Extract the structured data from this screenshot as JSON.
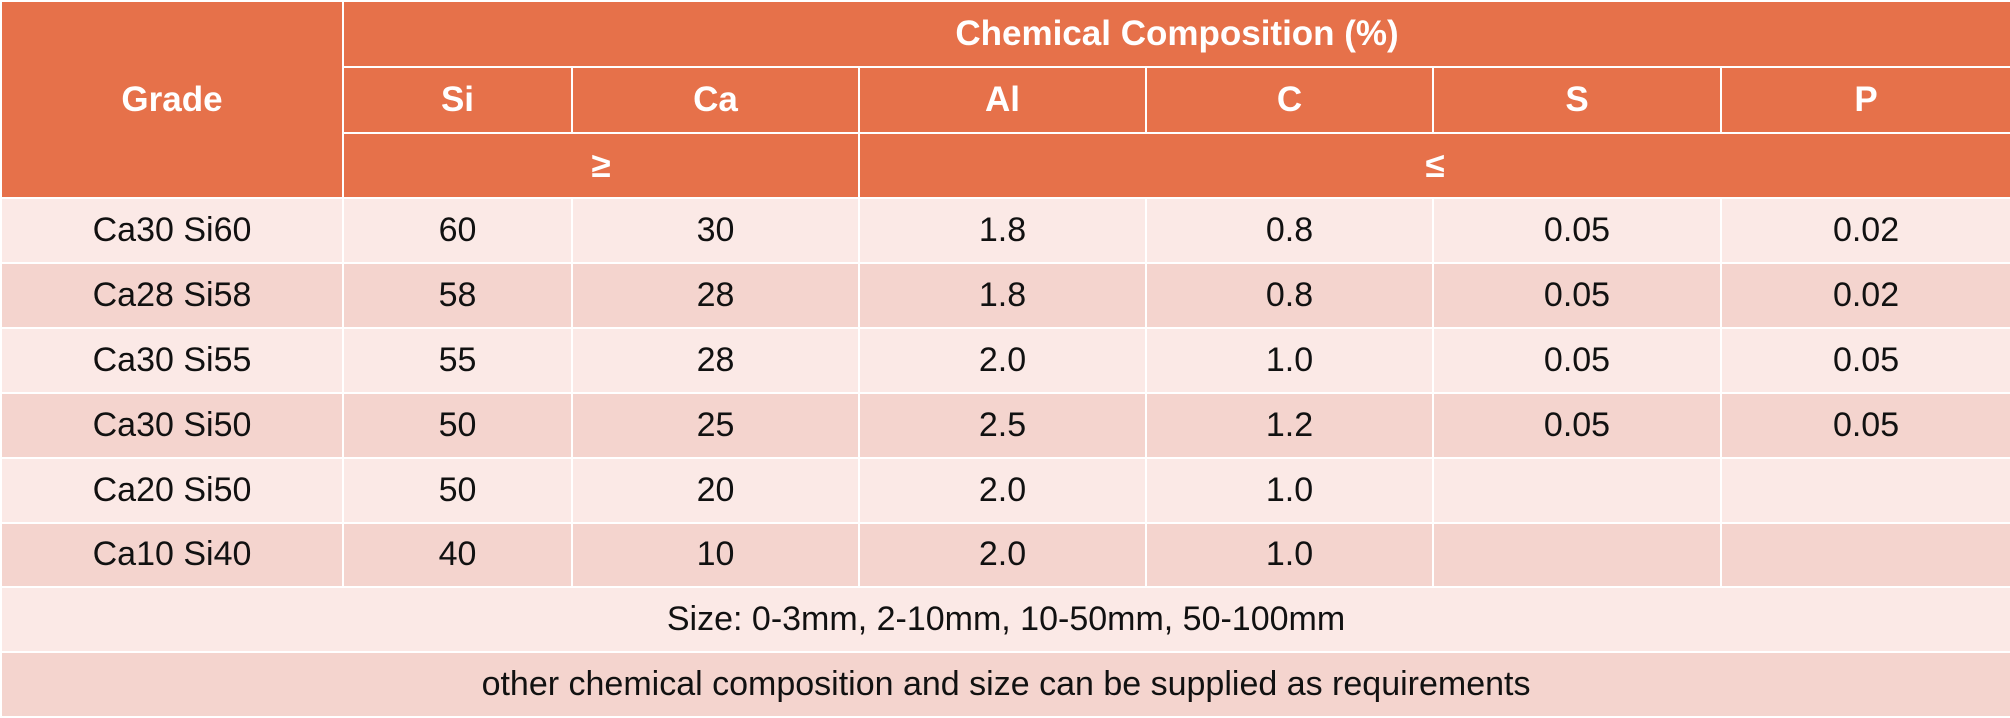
{
  "table": {
    "grade_header": "Grade",
    "composition_header": "Chemical Composition (%)",
    "columns": [
      "Si",
      "Ca",
      "Al",
      "C",
      "S",
      "P"
    ],
    "min_label": "≥",
    "max_label": "≤",
    "rows": [
      {
        "grade": "Ca30 Si60",
        "values": [
          "60",
          "30",
          "1.8",
          "0.8",
          "0.05",
          "0.02"
        ]
      },
      {
        "grade": "Ca28 Si58",
        "values": [
          "58",
          "28",
          "1.8",
          "0.8",
          "0.05",
          "0.02"
        ]
      },
      {
        "grade": "Ca30 Si55",
        "values": [
          "55",
          "28",
          "2.0",
          "1.0",
          "0.05",
          "0.05"
        ]
      },
      {
        "grade": "Ca30 Si50",
        "values": [
          "50",
          "25",
          "2.5",
          "1.2",
          "0.05",
          "0.05"
        ]
      },
      {
        "grade": "Ca20 Si50",
        "values": [
          "50",
          "20",
          "2.0",
          "1.0",
          "",
          ""
        ]
      },
      {
        "grade": "Ca10 Si40",
        "values": [
          "40",
          "10",
          "2.0",
          "1.0",
          "",
          ""
        ]
      }
    ],
    "size_note": "Size: 0-3mm, 2-10mm, 10-50mm, 50-100mm",
    "supply_note": "other chemical composition and size can be supplied as requirements"
  },
  "colors": {
    "header_bg": "#e6714a",
    "header_text": "#ffffff",
    "row_light": "#fbe9e6",
    "row_dark": "#f4d4ce",
    "border": "#ffffff"
  }
}
